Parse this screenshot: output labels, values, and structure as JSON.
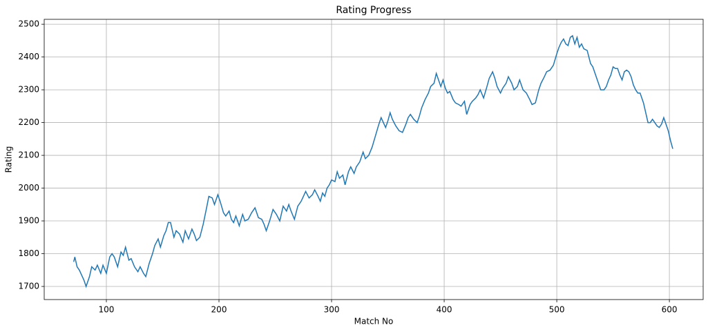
{
  "chart_data": {
    "type": "line",
    "title": "Rating Progress",
    "xlabel": "Match No",
    "ylabel": "Rating",
    "x": [
      71,
      72,
      74,
      76,
      78,
      80,
      82,
      85,
      87,
      90,
      92,
      95,
      97,
      100,
      103,
      105,
      107,
      110,
      113,
      115,
      117,
      120,
      122,
      125,
      128,
      130,
      133,
      135,
      138,
      141,
      143,
      146,
      148,
      151,
      153,
      155,
      157,
      160,
      162,
      165,
      168,
      170,
      173,
      176,
      178,
      180,
      183,
      186,
      189,
      191,
      194,
      196,
      199,
      201,
      204,
      206,
      209,
      211,
      213,
      215,
      218,
      221,
      223,
      226,
      229,
      232,
      235,
      238,
      240,
      242,
      245,
      248,
      251,
      254,
      257,
      260,
      262,
      264,
      267,
      270,
      273,
      275,
      277,
      280,
      283,
      285,
      288,
      290,
      292,
      294,
      296,
      298,
      300,
      303,
      305,
      307,
      310,
      312,
      315,
      317,
      320,
      322,
      325,
      328,
      330,
      333,
      336,
      339,
      342,
      344,
      346,
      348,
      350,
      352,
      354,
      357,
      360,
      363,
      366,
      368,
      370,
      373,
      376,
      378,
      380,
      383,
      386,
      388,
      391,
      393,
      395,
      397,
      399,
      401,
      403,
      405,
      408,
      410,
      413,
      415,
      418,
      420,
      423,
      425,
      428,
      430,
      432,
      435,
      438,
      440,
      443,
      445,
      447,
      450,
      452,
      455,
      457,
      460,
      462,
      465,
      467,
      470,
      473,
      476,
      478,
      481,
      484,
      486,
      489,
      491,
      494,
      497,
      500,
      502,
      504,
      506,
      508,
      510,
      512,
      514,
      516,
      518,
      520,
      522,
      524,
      527,
      530,
      532,
      535,
      537,
      539,
      542,
      544,
      546,
      548,
      550,
      552,
      554,
      556,
      558,
      560,
      562,
      564,
      566,
      568,
      570,
      572,
      574,
      577,
      579,
      581,
      583,
      585,
      587,
      589,
      591,
      593,
      595,
      597,
      599,
      601,
      603
    ],
    "series": [
      {
        "name": "Rating",
        "color": "#1f77b4",
        "values": [
          1775,
          1790,
          1760,
          1750,
          1735,
          1720,
          1700,
          1730,
          1760,
          1750,
          1765,
          1740,
          1765,
          1740,
          1790,
          1800,
          1790,
          1760,
          1805,
          1795,
          1820,
          1780,
          1785,
          1760,
          1745,
          1760,
          1740,
          1730,
          1770,
          1800,
          1825,
          1845,
          1820,
          1855,
          1870,
          1895,
          1895,
          1850,
          1870,
          1860,
          1835,
          1870,
          1845,
          1875,
          1860,
          1840,
          1850,
          1890,
          1940,
          1975,
          1970,
          1950,
          1980,
          1960,
          1925,
          1915,
          1930,
          1905,
          1895,
          1915,
          1885,
          1920,
          1900,
          1905,
          1925,
          1940,
          1910,
          1905,
          1890,
          1870,
          1900,
          1935,
          1920,
          1900,
          1945,
          1930,
          1950,
          1930,
          1905,
          1945,
          1960,
          1975,
          1990,
          1970,
          1980,
          1995,
          1975,
          1960,
          1985,
          1975,
          2000,
          2010,
          2025,
          2020,
          2050,
          2030,
          2040,
          2010,
          2050,
          2065,
          2045,
          2065,
          2080,
          2110,
          2090,
          2100,
          2125,
          2160,
          2195,
          2215,
          2200,
          2185,
          2205,
          2230,
          2210,
          2190,
          2175,
          2170,
          2195,
          2215,
          2225,
          2210,
          2200,
          2220,
          2245,
          2270,
          2290,
          2310,
          2320,
          2350,
          2330,
          2310,
          2330,
          2305,
          2290,
          2295,
          2270,
          2260,
          2255,
          2250,
          2265,
          2225,
          2255,
          2265,
          2275,
          2285,
          2300,
          2275,
          2310,
          2335,
          2355,
          2335,
          2310,
          2290,
          2305,
          2320,
          2340,
          2320,
          2300,
          2310,
          2330,
          2300,
          2290,
          2270,
          2255,
          2260,
          2300,
          2320,
          2340,
          2355,
          2360,
          2375,
          2410,
          2430,
          2445,
          2455,
          2440,
          2435,
          2460,
          2465,
          2440,
          2460,
          2430,
          2440,
          2425,
          2420,
          2380,
          2370,
          2340,
          2320,
          2300,
          2300,
          2310,
          2330,
          2345,
          2370,
          2365,
          2365,
          2345,
          2330,
          2355,
          2360,
          2355,
          2340,
          2315,
          2300,
          2290,
          2290,
          2260,
          2230,
          2200,
          2200,
          2210,
          2200,
          2190,
          2185,
          2195,
          2215,
          2195,
          2175,
          2145,
          2120
        ]
      }
    ],
    "xlim": [
      44.8,
      630
    ],
    "xticks": [
      100,
      200,
      300,
      400,
      500,
      600
    ],
    "ylim": [
      1660,
      2515
    ],
    "yticks": [
      1700,
      1800,
      1900,
      2000,
      2100,
      2200,
      2300,
      2400,
      2500
    ],
    "grid": true
  }
}
